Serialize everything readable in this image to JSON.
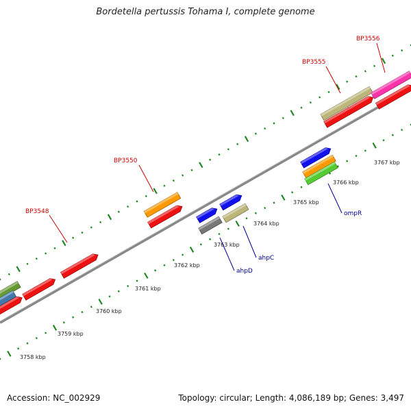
{
  "title": "Bordetella pertussis Tohama I, complete genome",
  "footer": {
    "accession": "Accession: NC_002929",
    "topology": "Topology: circular; Length: 4,086,189 bp; Genes: 3,497"
  },
  "colors": {
    "red_gene": "#ee1111",
    "tick_green": "#228822",
    "backbone": "#888888",
    "label_red": "#cc0000",
    "label_blue": "#000099",
    "orange": "#ff9900",
    "khaki": "#bdb67a",
    "magenta": "#ff33aa",
    "blue": "#1111ee",
    "gray": "#777777",
    "lime": "#55cc33",
    "olive": "#669933",
    "steelblue": "#4477aa"
  },
  "scale_labels": [
    "3758 kbp",
    "3759 kbp",
    "3760 kbp",
    "3761 kbp",
    "3762 kbp",
    "3763 kbp",
    "3764 kbp",
    "3765 kbp",
    "3766 kbp",
    "3767 kbp"
  ],
  "gene_labels": [
    {
      "name": "BP3548",
      "color": "red"
    },
    {
      "name": "BP3550",
      "color": "red"
    },
    {
      "name": "BP3555",
      "color": "red"
    },
    {
      "name": "BP3556",
      "color": "red"
    },
    {
      "name": "ahpD",
      "color": "blue"
    },
    {
      "name": "ahpC",
      "color": "blue"
    },
    {
      "name": "ompR",
      "color": "blue"
    }
  ]
}
